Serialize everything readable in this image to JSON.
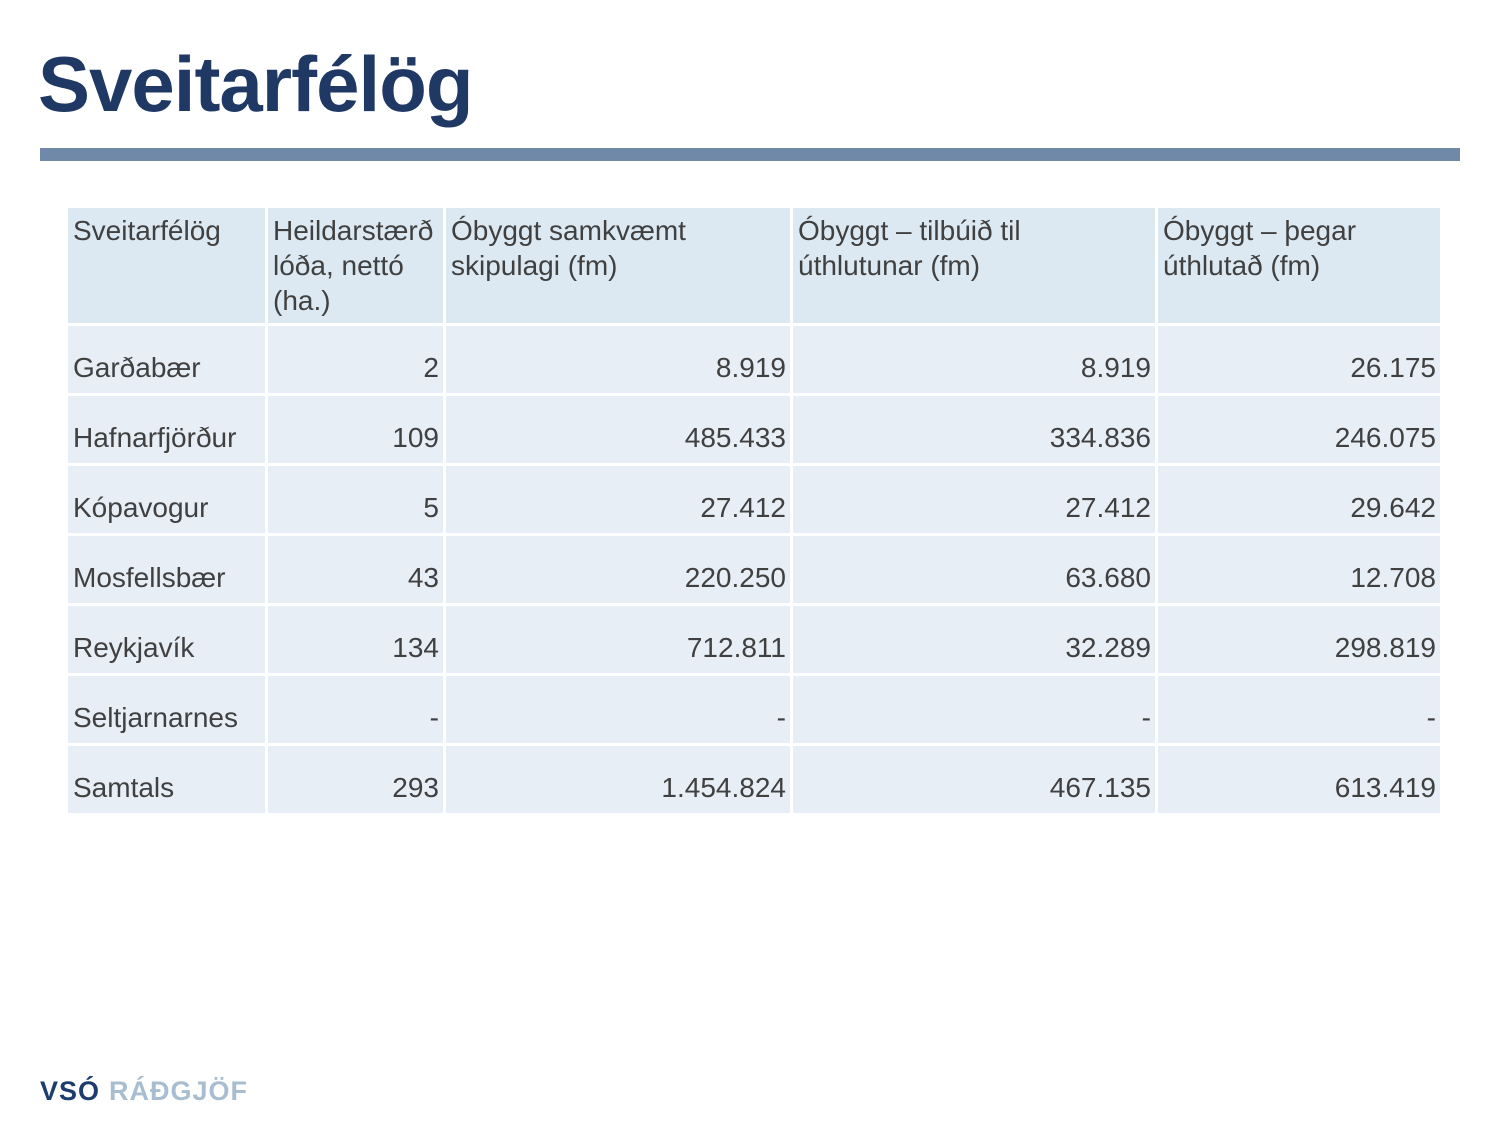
{
  "slide": {
    "title": "Sveitarfélög"
  },
  "table": {
    "columns": [
      "Sveitarfélög",
      "Heildarstærð\nlóða, nettó\n(ha.)",
      "Óbyggt samkvæmt\nskipulagi (fm)",
      "Óbyggt – tilbúið til\núthlutunar (fm)",
      "Óbyggt – þegar\núthlutað (fm)"
    ],
    "rows": [
      [
        "Garðabær",
        "2",
        "8.919",
        "8.919",
        "26.175"
      ],
      [
        "Hafnarfjörður",
        "109",
        "485.433",
        "334.836",
        "246.075"
      ],
      [
        "Kópavogur",
        "5",
        "27.412",
        "27.412",
        "29.642"
      ],
      [
        "Mosfellsbær",
        "43",
        "220.250",
        "63.680",
        "12.708"
      ],
      [
        "Reykjavík",
        "134",
        "712.811",
        "32.289",
        "298.819"
      ],
      [
        "Seltjarnarnes",
        "-",
        "-",
        "-",
        "-"
      ],
      [
        "Samtals",
        "293",
        "1.454.824",
        "467.135",
        "613.419"
      ]
    ]
  },
  "footer": {
    "logo_primary": "VSÓ",
    "logo_secondary": "RÁÐGJÖF"
  },
  "colors": {
    "title": "#1f3864",
    "divider": "#7189a9",
    "table_header_bg": "#dce9f2",
    "table_cell_bg": "#e7eef6",
    "table_text": "#404040",
    "logo_primary": "#1c3c6e",
    "logo_secondary": "#a9bdd1"
  }
}
